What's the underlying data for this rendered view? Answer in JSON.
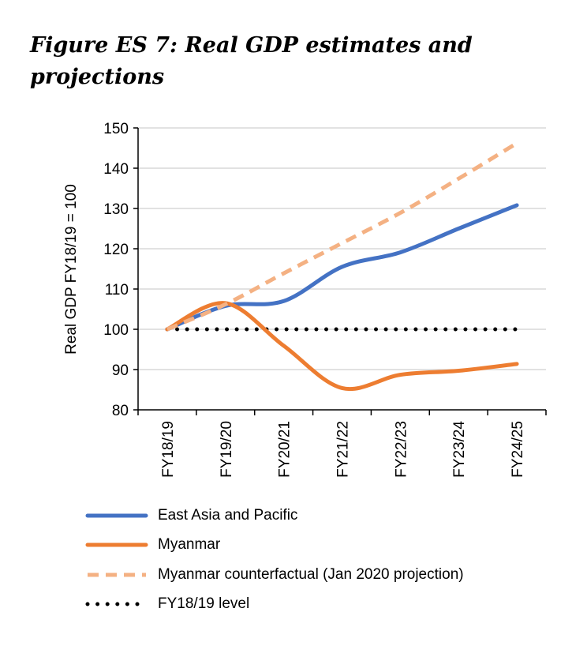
{
  "chart_data": {
    "type": "line",
    "title": "Figure ES 7: Real GDP estimates and projections",
    "xlabel": "",
    "ylabel": "Real GDP  FY18/19 = 100",
    "ylim": [
      80,
      150
    ],
    "yticks": [
      80,
      90,
      100,
      110,
      120,
      130,
      140,
      150
    ],
    "categories": [
      "FY18/19",
      "FY19/20",
      "FY20/21",
      "FY21/22",
      "FY22/23",
      "FY23/24",
      "FY24/25"
    ],
    "grid": true,
    "legend_position": "bottom",
    "series": [
      {
        "name": "East Asia and Pacific",
        "color": "#4472C4",
        "style": "solid",
        "values": [
          100,
          105.8,
          107,
          115.5,
          119.1,
          125,
          130.8
        ]
      },
      {
        "name": "Myanmar",
        "color": "#ED7D31",
        "style": "solid",
        "values": [
          100,
          106.5,
          95.9,
          85.4,
          88.7,
          89.7,
          91.4
        ]
      },
      {
        "name": "Myanmar counterfactual (Jan 2020 projection)",
        "color": "#F4B183",
        "style": "dashed",
        "values": [
          100,
          106.2,
          113.9,
          121.4,
          128.9,
          137.4,
          146.2
        ]
      },
      {
        "name": "FY18/19 level",
        "color": "#000000",
        "style": "dotted",
        "values": [
          100,
          100,
          100,
          100,
          100,
          100,
          100
        ]
      }
    ]
  }
}
